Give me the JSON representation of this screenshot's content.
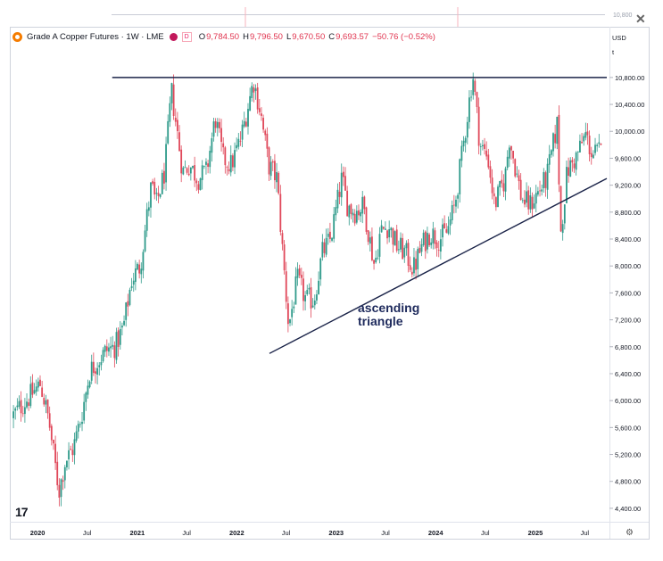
{
  "header": {
    "title": "Grade A Copper Futures · 1W · LME",
    "source_badge": "D",
    "ohlc": [
      {
        "k": "O",
        "v": "9,784.50"
      },
      {
        "k": "H",
        "v": "9,796.50"
      },
      {
        "k": "L",
        "v": "9,670.50"
      },
      {
        "k": "C",
        "v": "9,693.57"
      },
      {
        "k": "",
        "v": "−50.76 (−0.52%)"
      }
    ],
    "currency": "USD",
    "unit": "t"
  },
  "top_strip_tick": "10,800",
  "annotation": {
    "line1": "ascending",
    "line2": "triangle"
  },
  "colors": {
    "up": "#089981",
    "down": "#f23645",
    "line": "#1a2348",
    "up_light": "#2e9a8a",
    "down_light": "#e0485a"
  },
  "icons": [
    "close-icon",
    "tradingview-logo-icon",
    "settings-icon"
  ],
  "chart_data": {
    "type": "candlestick",
    "title": "Grade A Copper Futures · 1W · LME",
    "y_ticks": [
      "10,800.00",
      "10,400.00",
      "10,000.00",
      "9,600.00",
      "9,200.00",
      "8,800.00",
      "8,400.00",
      "8,000.00",
      "7,600.00",
      "7,200.00",
      "6,800.00",
      "6,400.00",
      "6,000.00",
      "5,600.00",
      "5,200.00",
      "4,800.00",
      "4,400.00"
    ],
    "x_ticks": [
      "2020",
      "Jul",
      "2021",
      "Jul",
      "2022",
      "Jul",
      "2023",
      "Jul",
      "2024",
      "Jul",
      "2025",
      "Jul"
    ],
    "x_tick_dates": [
      "2020-01-01",
      "2020-07-01",
      "2021-01-01",
      "2021-07-01",
      "2022-01-01",
      "2022-07-01",
      "2023-01-01",
      "2023-07-01",
      "2024-01-01",
      "2024-07-01",
      "2025-01-01",
      "2025-07-01"
    ],
    "ylim": [
      4200,
      11050
    ],
    "xlim": [
      "2019-10-01",
      "2025-09-20"
    ],
    "resistance_line": {
      "y": 10800,
      "x_start": "2020-10-01",
      "x_end": "2025-09-20"
    },
    "support_line": {
      "points": [
        [
          "2022-05-01",
          6700
        ],
        [
          "2025-09-20",
          9300
        ]
      ]
    },
    "price_path": [
      [
        "2019-10-01",
        5750
      ],
      [
        "2019-11-01",
        5900
      ],
      [
        "2019-12-15",
        6100
      ],
      [
        "2020-01-15",
        6250
      ],
      [
        "2020-02-15",
        5700
      ],
      [
        "2020-03-23",
        4650
      ],
      [
        "2020-04-15",
        5100
      ],
      [
        "2020-05-15",
        5300
      ],
      [
        "2020-06-15",
        5800
      ],
      [
        "2020-07-15",
        6450
      ],
      [
        "2020-08-15",
        6600
      ],
      [
        "2020-09-15",
        6750
      ],
      [
        "2020-10-15",
        6800
      ],
      [
        "2020-11-15",
        7100
      ],
      [
        "2020-12-15",
        7800
      ],
      [
        "2021-01-15",
        8000
      ],
      [
        "2021-02-25",
        9200
      ],
      [
        "2021-03-15",
        8900
      ],
      [
        "2021-04-15",
        9400
      ],
      [
        "2021-05-10",
        10600
      ],
      [
        "2021-06-20",
        9400
      ],
      [
        "2021-07-15",
        9500
      ],
      [
        "2021-08-15",
        9300
      ],
      [
        "2021-09-15",
        9400
      ],
      [
        "2021-10-18",
        10200
      ],
      [
        "2021-11-15",
        9600
      ],
      [
        "2021-12-15",
        9500
      ],
      [
        "2022-01-20",
        9900
      ],
      [
        "2022-03-07",
        10750
      ],
      [
        "2022-04-01",
        10300
      ],
      [
        "2022-05-01",
        9500
      ],
      [
        "2022-06-01",
        9300
      ],
      [
        "2022-06-20",
        8300
      ],
      [
        "2022-07-14",
        7100
      ],
      [
        "2022-08-15",
        7800
      ],
      [
        "2022-09-15",
        7500
      ],
      [
        "2022-10-15",
        7500
      ],
      [
        "2022-11-15",
        8200
      ],
      [
        "2022-12-15",
        8400
      ],
      [
        "2023-01-25",
        9300
      ],
      [
        "2023-02-15",
        8900
      ],
      [
        "2023-03-15",
        8800
      ],
      [
        "2023-04-15",
        8900
      ],
      [
        "2023-05-25",
        8000
      ],
      [
        "2023-06-15",
        8500
      ],
      [
        "2023-07-15",
        8600
      ],
      [
        "2023-08-15",
        8300
      ],
      [
        "2023-09-15",
        8200
      ],
      [
        "2023-10-15",
        7950
      ],
      [
        "2023-11-15",
        8300
      ],
      [
        "2023-12-15",
        8500
      ],
      [
        "2024-01-15",
        8400
      ],
      [
        "2024-02-15",
        8500
      ],
      [
        "2024-03-15",
        8900
      ],
      [
        "2024-04-15",
        9800
      ],
      [
        "2024-05-20",
        10850
      ],
      [
        "2024-06-15",
        9800
      ],
      [
        "2024-07-15",
        9600
      ],
      [
        "2024-08-07",
        8900
      ],
      [
        "2024-09-15",
        9300
      ],
      [
        "2024-10-01",
        9900
      ],
      [
        "2024-11-15",
        9000
      ],
      [
        "2024-12-15",
        8900
      ],
      [
        "2025-01-15",
        9100
      ],
      [
        "2025-02-15",
        9300
      ],
      [
        "2025-03-25",
        10100
      ],
      [
        "2025-04-08",
        8500
      ],
      [
        "2025-05-01",
        9400
      ],
      [
        "2025-06-01",
        9600
      ],
      [
        "2025-07-08",
        9950
      ],
      [
        "2025-08-01",
        9650
      ],
      [
        "2025-09-01",
        9700
      ]
    ]
  }
}
